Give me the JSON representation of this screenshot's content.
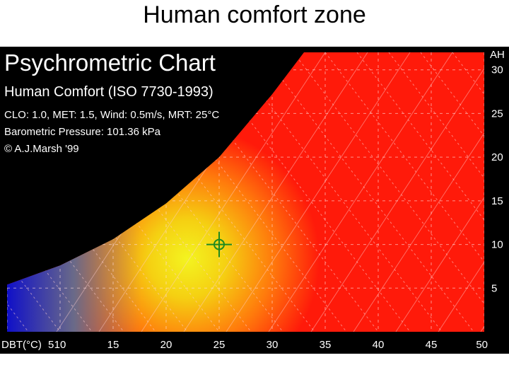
{
  "slide": {
    "title": "Human comfort zone"
  },
  "chart_data": {
    "type": "heatmap",
    "title": "Psychrometric Chart",
    "subtitle": "Human Comfort (ISO 7730-1993)",
    "info_lines": [
      "CLO: 1.0, MET: 1.5, Wind: 0.5m/s, MRT: 25°C",
      "Barometric Pressure: 101.36 kPa",
      "© A.J.Marsh '99"
    ],
    "x_axis_label": "DBT(°C)",
    "y_axis_label": "AH",
    "xlim": [
      5,
      50
    ],
    "ylim": [
      0,
      32
    ],
    "x_ticks": [
      "5",
      "10",
      "15",
      "20",
      "25",
      "30",
      "35",
      "40",
      "45",
      "50"
    ],
    "y_ticks": [
      "5",
      "10",
      "15",
      "20",
      "25",
      "30"
    ],
    "marker": {
      "dbt": 25,
      "ah": 10,
      "color": "#1f8a1f"
    },
    "colors": {
      "cold": "#1010c8",
      "comfort": "#f2f020",
      "hot": "#ff1a0a",
      "background": "#000000"
    },
    "saturation_curve_ah": [
      [
        5,
        5.4
      ],
      [
        10,
        7.6
      ],
      [
        15,
        10.6
      ],
      [
        20,
        14.7
      ],
      [
        25,
        20.0
      ],
      [
        30,
        27.2
      ],
      [
        33,
        32.0
      ]
    ]
  }
}
